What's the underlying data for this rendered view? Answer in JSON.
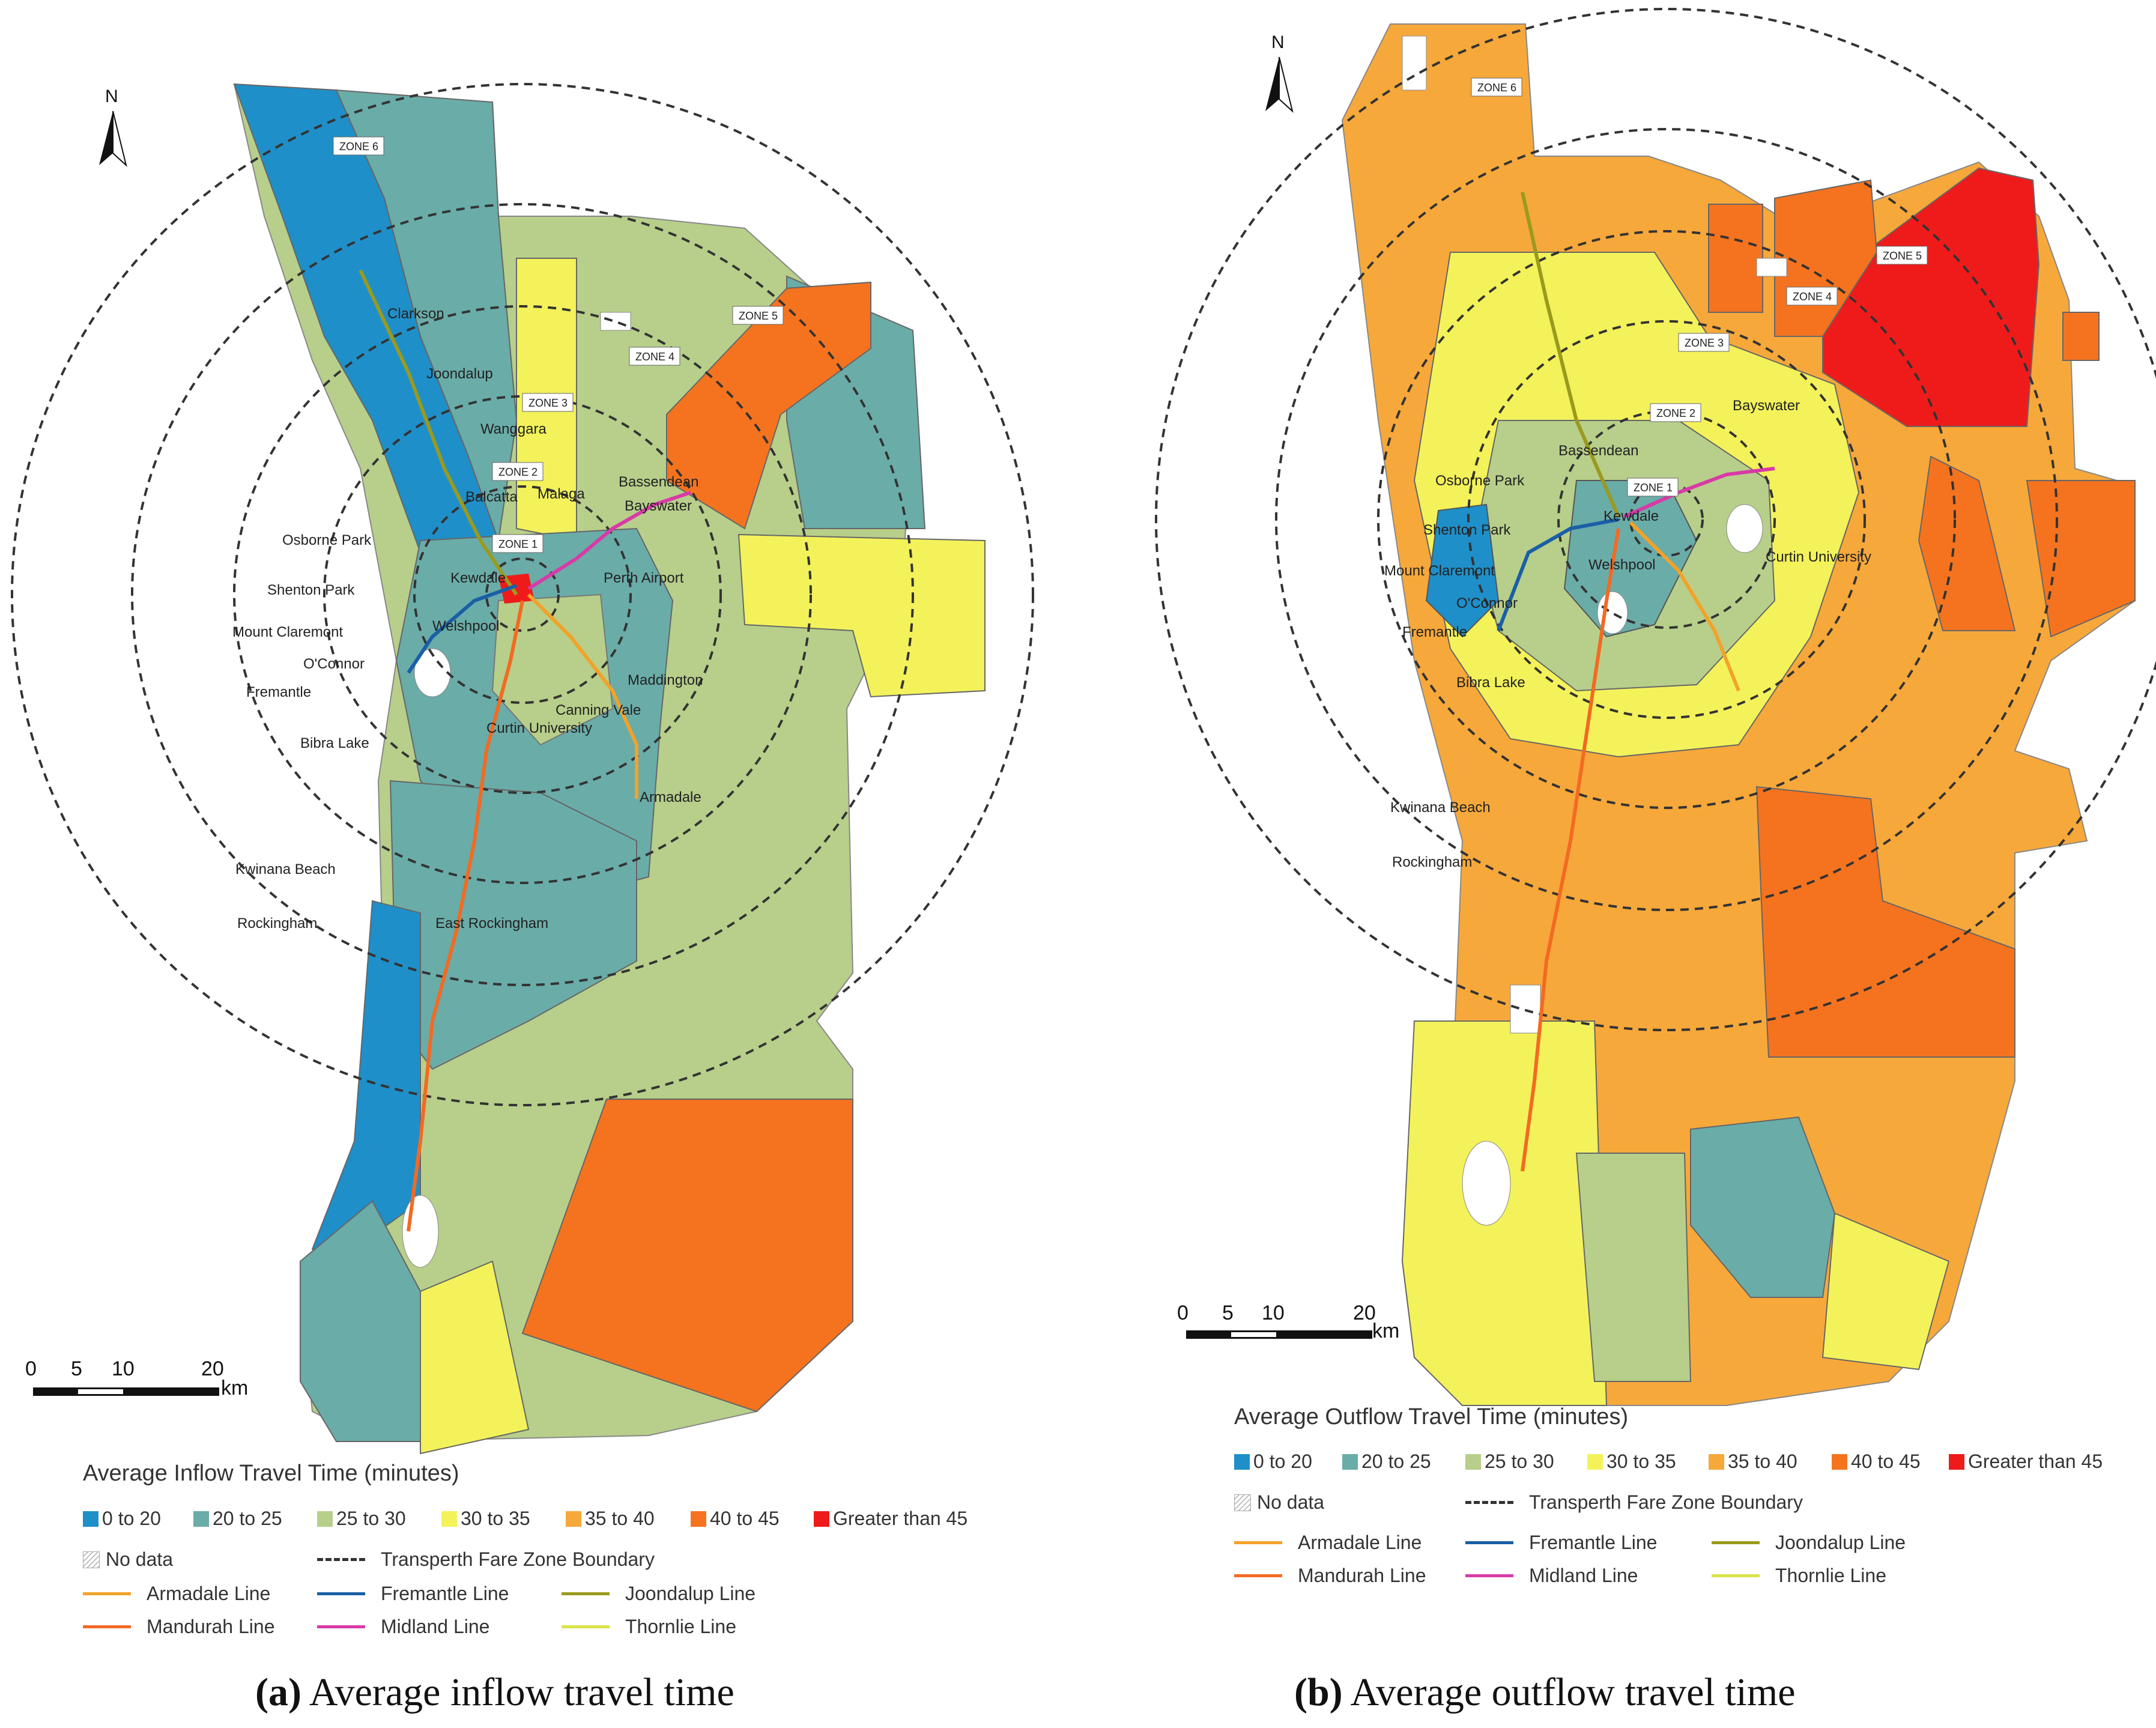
{
  "panels": [
    {
      "id": "a",
      "caption_label": "(a)",
      "caption_text": " Average inflow travel time",
      "legend_title": "Average Inflow Travel Time  (minutes)"
    },
    {
      "id": "b",
      "caption_label": "(b)",
      "caption_text": " Average outflow travel time",
      "legend_title": "Average Outflow Travel Time  (minutes)"
    }
  ],
  "legend": {
    "classes": [
      {
        "label": "0 to 20",
        "color": "#1f8fc9"
      },
      {
        "label": "20 to 25",
        "color": "#6aaca8"
      },
      {
        "label": "25 to 30",
        "color": "#b7cf8a"
      },
      {
        "label": "30 to 35",
        "color": "#f3f25a"
      },
      {
        "label": "35 to 40",
        "color": "#f7a83b"
      },
      {
        "label": "40 to 45",
        "color": "#f5731f"
      },
      {
        "label": "Greater than 45",
        "color": "#ef1b1b"
      }
    ],
    "no_data": "No data",
    "zone_boundary": "Transperth Fare Zone Boundary",
    "lines": [
      {
        "label": "Armadale Line",
        "color": "#f2a22a"
      },
      {
        "label": "Fremantle Line",
        "color": "#1a5fa6"
      },
      {
        "label": "Joondalup Line",
        "color": "#9a9a1e"
      },
      {
        "label": "Mandurah Line",
        "color": "#f36a22"
      },
      {
        "label": "Midland Line",
        "color": "#d83aa8"
      },
      {
        "label": "Thornlie Line",
        "color": "#d9e34a"
      }
    ]
  },
  "north": "N",
  "scale": {
    "ticks": [
      "0",
      "5",
      "10",
      "20"
    ],
    "unit": "km"
  },
  "zones": [
    "ZONE 1",
    "ZONE 2",
    "ZONE 3",
    "ZONE 4",
    "ZONE 5",
    "ZONE 6"
  ],
  "places_a": {
    "clarkson": "Clarkson",
    "joondalup": "Joondalup",
    "wanggara": "Wanggara",
    "balcatta": "Balcatta",
    "malaga": "Malaga",
    "bassendean": "Bassendean",
    "bayswater": "Bayswater",
    "osborne_park": "Osborne Park",
    "kewdale": "Kewdale",
    "perth_airport": "Perth Airport",
    "shenton_park": "Shenton Park",
    "mount_claremont": "Mount Claremont",
    "welshpool": "Welshpool",
    "oconnor": "O'Connor",
    "maddington": "Maddington",
    "fremantle": "Fremantle",
    "canning_vale": "Canning Vale",
    "curtin": "Curtin University",
    "bibra_lake": "Bibra Lake",
    "armadale": "Armadale",
    "kwinana_beach": "Kwinana Beach",
    "east_rockingham": "East Rockingham",
    "rockingham": "Rockingham"
  },
  "places_b": {
    "bayswater": "Bayswater",
    "bassendean": "Bassendean",
    "osborne_park": "Osborne Park",
    "shenton_park": "Shenton Park",
    "kewdale": "Kewdale",
    "curtin": "Curtin University",
    "mount_claremont": "Mount Claremont",
    "welshpool": "Welshpool",
    "oconnor": "O'Connor",
    "fremantle": "Fremantle",
    "bibra_lake": "Bibra Lake",
    "kwinana_beach": "Kwinana Beach",
    "rockingham": "Rockingham"
  }
}
